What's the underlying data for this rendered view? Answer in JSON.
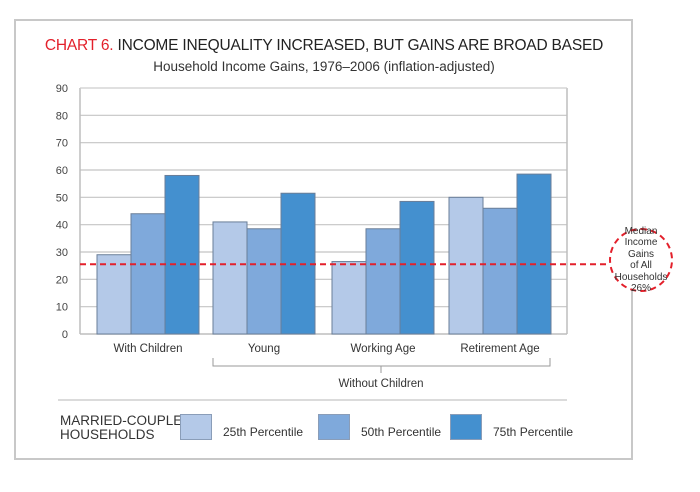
{
  "chart_data": {
    "type": "bar",
    "title_prefix": "CHART 6.",
    "title": "INCOME INEQUALITY INCREASED, BUT GAINS ARE BROAD BASED",
    "subtitle": "Household Income Gains, 1976–2006 (inflation-adjusted)",
    "xlabel": "",
    "ylabel": "",
    "ylim": [
      0,
      90
    ],
    "yticks": [
      "0",
      "10",
      "20",
      "30",
      "40",
      "50",
      "60",
      "70",
      "80",
      "90"
    ],
    "grid": true,
    "categories": [
      "With Children",
      "Young",
      "Working Age",
      "Retirement Age"
    ],
    "category_group_label": "Without Children",
    "series": [
      {
        "name": "25th Percentile",
        "color": "#b4c9e8",
        "values": [
          29,
          41,
          26.5,
          50
        ]
      },
      {
        "name": "50th Percentile",
        "color": "#7fa9db",
        "values": [
          44,
          38.5,
          38.5,
          46
        ]
      },
      {
        "name": "75th Percentile",
        "color": "#4490cf",
        "values": [
          58,
          51.5,
          48.5,
          58.5
        ]
      }
    ],
    "reference_line": {
      "value": 25.5,
      "color": "#e3202b",
      "label_lines": [
        "Median",
        "Income Gains",
        "of All",
        "Households",
        "26%"
      ]
    },
    "legend": {
      "title_lines": [
        "MARRIED-COUPLE",
        "HOUSEHOLDS"
      ],
      "placement": "bottom"
    }
  }
}
